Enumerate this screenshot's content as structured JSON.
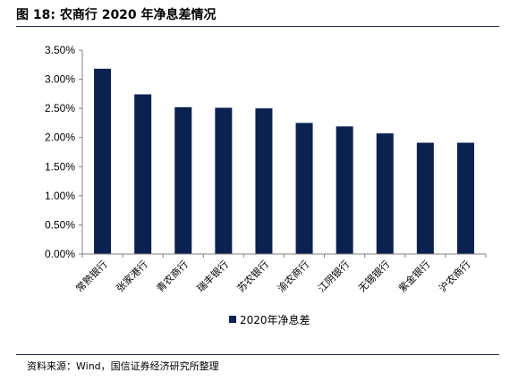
{
  "figure": {
    "title": "图 18:  农商行 2020 年净息差情况",
    "source": "资料来源：Wind，国信证券经济研究所整理"
  },
  "colors": {
    "bar": "#0b2150",
    "axis": "#808080",
    "rule": "#1a2a4a"
  },
  "chart_data": {
    "type": "bar",
    "categories": [
      "常熟银行",
      "张家港行",
      "青农商行",
      "瑞丰银行",
      "苏农银行",
      "渝农商行",
      "江阴银行",
      "无锡银行",
      "紫金银行",
      "沪农商行"
    ],
    "series": [
      {
        "name": "2020年净息差",
        "values": [
          3.18,
          2.74,
          2.52,
          2.51,
          2.5,
          2.25,
          2.19,
          2.07,
          1.91,
          1.91
        ]
      }
    ],
    "yticks": [
      "0.00%",
      "0.50%",
      "1.00%",
      "1.50%",
      "2.00%",
      "2.50%",
      "3.00%",
      "3.50%"
    ],
    "ylim": [
      0,
      3.5
    ],
    "xlabel": "",
    "ylabel": "",
    "grid": false,
    "legend_position": "bottom"
  }
}
